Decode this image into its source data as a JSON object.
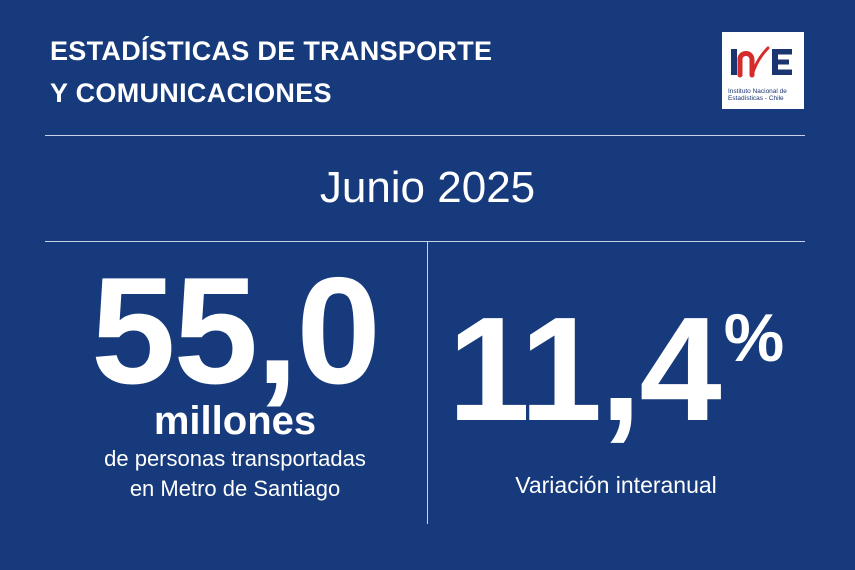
{
  "header": {
    "title_line1": "ESTADÍSTICAS DE TRANSPORTE",
    "title_line2": "Y COMUNICACIONES"
  },
  "logo": {
    "letters": "INE",
    "subtitle_line1": "Instituto Nacional de",
    "subtitle_line2": "Estadísticas - Chile",
    "colors": {
      "blue": "#1a3570",
      "red": "#d62b2b"
    }
  },
  "period": "Junio 2025",
  "metric_passengers": {
    "value": "55,0",
    "unit": "millones",
    "description_line1": "de personas transportadas",
    "description_line2": "en Metro de Santiago"
  },
  "metric_variation": {
    "value": "11,4",
    "symbol": "%",
    "label": "Variación interanual"
  },
  "colors": {
    "background": "#163a7c",
    "text": "#ffffff",
    "rule": "#c9d2e6"
  }
}
